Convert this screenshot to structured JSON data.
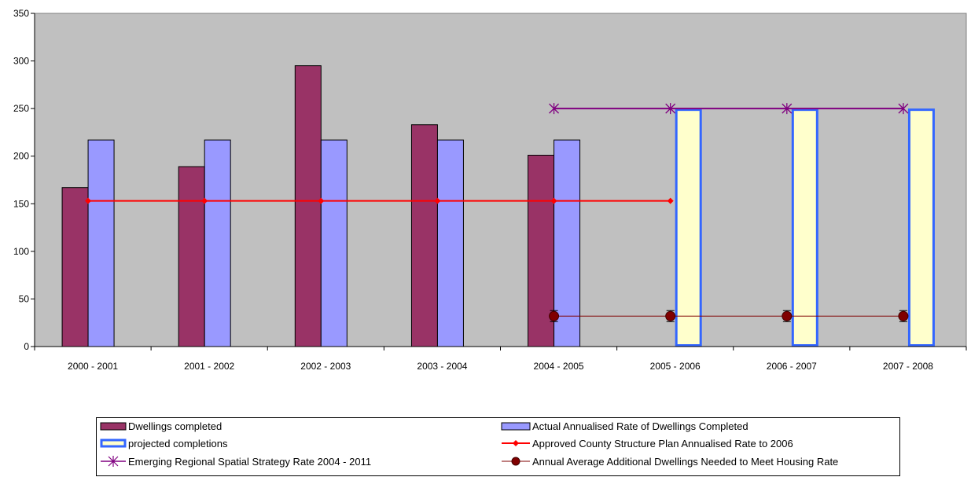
{
  "chart_data": {
    "type": "bar",
    "categories": [
      "2000 - 2001",
      "2001 - 2002",
      "2002 - 2003",
      "2003 - 2004",
      "2004 - 2005",
      "2005 - 2006",
      "2006 - 2007",
      "2007 - 2008"
    ],
    "ylim": [
      0,
      350
    ],
    "yticks": [
      0,
      50,
      100,
      150,
      200,
      250,
      300,
      350
    ],
    "grid": false,
    "plot_background": "#c0c0c0",
    "legend_position": "bottom",
    "series": [
      {
        "name": "Dwellings completed",
        "type": "bar",
        "color": "#993366",
        "values": [
          167,
          189,
          295,
          233,
          201,
          null,
          null,
          null
        ]
      },
      {
        "name": "Actual Annualised Rate of Dwellings Completed",
        "type": "bar",
        "color": "#9999ff",
        "values": [
          217,
          217,
          217,
          217,
          217,
          null,
          null,
          null
        ]
      },
      {
        "name": "projected completions",
        "type": "bar",
        "color": "#ffffcc",
        "border_color": "#3366ff",
        "values": [
          null,
          null,
          null,
          null,
          null,
          250,
          250,
          250
        ]
      },
      {
        "name": "Approved County Structure Plan Annualised Rate to 2006",
        "type": "line",
        "color": "#ff0000",
        "marker": "diamond",
        "values": [
          153,
          153,
          153,
          153,
          153,
          153,
          null,
          null
        ]
      },
      {
        "name": "Emerging Regional Spatial Strategy Rate 2004 - 2011",
        "type": "line",
        "color": "#800080",
        "marker": "asterisk",
        "values": [
          null,
          null,
          null,
          null,
          250,
          250,
          250,
          250
        ]
      },
      {
        "name": "Annual Average Additional Dwellings Needed to Meet Housing Rate",
        "type": "line",
        "color": "#800000",
        "marker": "circle",
        "error_bars": true,
        "values": [
          null,
          null,
          null,
          null,
          32,
          32,
          32,
          32
        ]
      }
    ]
  }
}
